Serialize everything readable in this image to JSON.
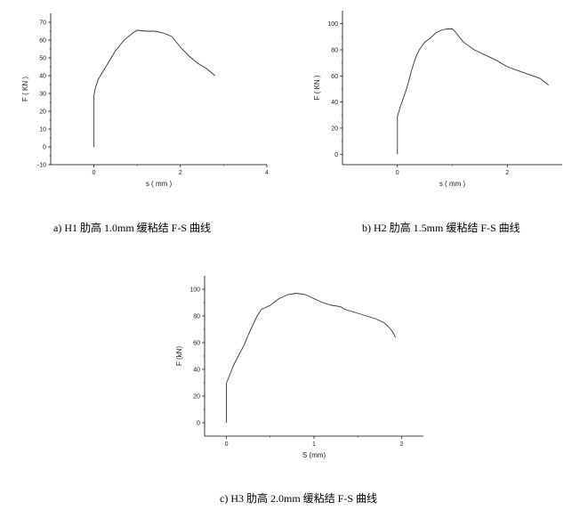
{
  "chart_data": [
    {
      "type": "line",
      "caption": "a) H1 肋高 1.0mm 缓粘结 F-S 曲线",
      "xlabel": "s ( mm )",
      "ylabel": "F ( KN )",
      "xlim": [
        -1,
        4
      ],
      "ylim": [
        -10,
        75
      ],
      "xticks": [
        0,
        2,
        4
      ],
      "yticks": [
        -10,
        0,
        10,
        20,
        30,
        40,
        50,
        60,
        70
      ],
      "series": [
        {
          "x": [
            0,
            0,
            0.03,
            0.1,
            0.2,
            0.3,
            0.4,
            0.5,
            0.6,
            0.7,
            0.8,
            0.9,
            1.0,
            1.2,
            1.4,
            1.6,
            1.8,
            2.0,
            2.2,
            2.4,
            2.6,
            2.8
          ],
          "y": [
            0,
            29,
            33,
            38,
            42,
            46,
            50,
            54,
            57,
            60,
            62,
            64,
            65.5,
            65,
            65,
            64,
            62,
            56,
            51,
            47,
            44,
            40
          ]
        }
      ]
    },
    {
      "type": "line",
      "caption": "b) H2 肋高 1.5mm 缓粘结 F-S 曲线",
      "xlabel": "s ( mm )",
      "ylabel": "F ( KN )",
      "xlim": [
        -1,
        3
      ],
      "ylim": [
        -8,
        110
      ],
      "xticks": [
        0,
        2
      ],
      "yticks": [
        0,
        20,
        40,
        60,
        80,
        100
      ],
      "series": [
        {
          "x": [
            0,
            0,
            0.05,
            0.1,
            0.15,
            0.2,
            0.25,
            0.3,
            0.35,
            0.4,
            0.5,
            0.6,
            0.7,
            0.8,
            0.9,
            1.0,
            1.05,
            1.2,
            1.4,
            1.6,
            1.8,
            2.0,
            2.2,
            2.4,
            2.6,
            2.75
          ],
          "y": [
            0,
            29,
            36,
            42,
            48,
            55,
            63,
            70,
            76,
            80,
            86,
            89,
            93,
            95,
            96,
            96,
            94,
            86,
            80,
            76,
            72,
            67,
            64,
            61,
            58,
            53
          ]
        }
      ]
    },
    {
      "type": "line",
      "caption": "c) H3 肋高 2.0mm 缓粘结 F-S 曲线",
      "xlabel": "S (mm)",
      "ylabel": "F (kN)",
      "xlim": [
        -0.25,
        2.25
      ],
      "ylim": [
        -10,
        110
      ],
      "xticks": [
        0,
        1,
        2
      ],
      "yticks": [
        0,
        20,
        40,
        60,
        80,
        100
      ],
      "series": [
        {
          "x": [
            0,
            0,
            0.02,
            0.05,
            0.08,
            0.12,
            0.15,
            0.2,
            0.25,
            0.3,
            0.35,
            0.4,
            0.5,
            0.6,
            0.7,
            0.8,
            0.9,
            1.0,
            1.1,
            1.2,
            1.3,
            1.35,
            1.5,
            1.6,
            1.7,
            1.8,
            1.85,
            1.9,
            1.93
          ],
          "y": [
            0,
            30,
            33,
            38,
            43,
            48,
            52,
            58,
            66,
            73,
            80,
            85,
            88,
            93,
            96,
            97,
            96,
            93,
            90,
            88,
            87,
            85,
            82,
            80,
            78,
            75,
            72,
            68,
            64
          ]
        }
      ]
    }
  ]
}
